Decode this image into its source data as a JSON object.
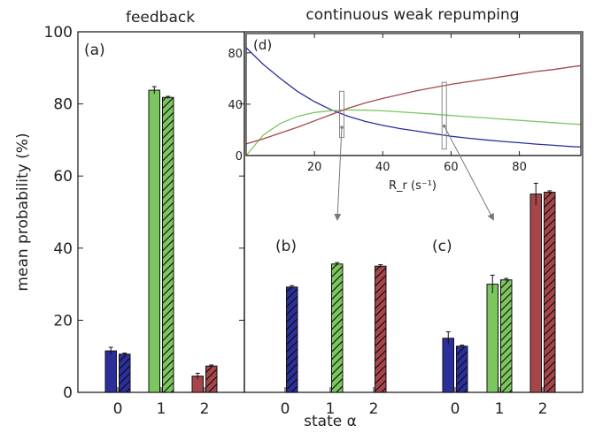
{
  "labels": {
    "feedback_title": "feedback",
    "cwr_title": "continuous weak repumping",
    "ylabel": "mean probability (%)",
    "xlabel": "state α"
  },
  "colors": {
    "blue": "#2a2f9c",
    "green": "#7cc65f",
    "red": "#a6464a",
    "axis": "#222222",
    "inset_box": "#888888"
  },
  "chart_data": [
    {
      "type": "bar",
      "panel_label": "(a)",
      "categories": [
        "0",
        "1",
        "2"
      ],
      "ylim": [
        0,
        100
      ],
      "yticks": [
        "0",
        "20",
        "40",
        "60",
        "80",
        "100"
      ],
      "series": [
        {
          "style": "solid",
          "values": [
            11.5,
            83.8,
            4.5
          ],
          "errors": [
            1.0,
            1.0,
            0.8
          ]
        },
        {
          "style": "hatched",
          "values": [
            10.6,
            81.8,
            7.3
          ],
          "errors": [
            0.3,
            0.3,
            0.3
          ]
        }
      ]
    },
    {
      "type": "bar",
      "panel_label": "(b)",
      "categories": [
        "0",
        "1",
        "2"
      ],
      "ylim": [
        0,
        100
      ],
      "series": [
        {
          "style": "hatched",
          "values": [
            29.2,
            35.6,
            35.0
          ],
          "errors": [
            0.4,
            0.4,
            0.4
          ]
        }
      ]
    },
    {
      "type": "bar",
      "panel_label": "(c)",
      "categories": [
        "0",
        "1",
        "2"
      ],
      "ylim": [
        0,
        100
      ],
      "series": [
        {
          "style": "solid",
          "values": [
            15.0,
            30.0,
            55.0
          ],
          "errors": [
            1.8,
            2.5,
            3.0
          ]
        },
        {
          "style": "hatched",
          "values": [
            12.8,
            31.2,
            55.5
          ],
          "errors": [
            0.3,
            0.4,
            0.4
          ]
        }
      ]
    },
    {
      "type": "line",
      "panel_label": "(d)",
      "xlabel": "R_r (s⁻¹)",
      "xlim": [
        0,
        98
      ],
      "ylim": [
        0,
        95
      ],
      "xticks": [
        "20",
        "40",
        "60",
        "80"
      ],
      "yticks": [
        "0",
        "40",
        "80"
      ],
      "x": [
        0,
        5,
        10,
        15,
        20,
        25,
        30,
        35,
        40,
        45,
        50,
        55,
        60,
        65,
        70,
        75,
        80,
        85,
        90,
        95,
        98
      ],
      "series": [
        {
          "color": "blue",
          "values": [
            84,
            71,
            60,
            50,
            42,
            35.5,
            30.5,
            26.5,
            23.5,
            21,
            19,
            17,
            15,
            13.5,
            12.2,
            11,
            10,
            8.9,
            8,
            7,
            6.6
          ]
        },
        {
          "color": "green",
          "values": [
            0,
            16,
            25,
            30.5,
            33.5,
            35,
            35.5,
            35.3,
            34.8,
            34,
            33.1,
            32.2,
            31.2,
            30.2,
            29.3,
            28.3,
            27.4,
            26.5,
            25.6,
            24.7,
            24.2
          ]
        },
        {
          "color": "red",
          "values": [
            9,
            13,
            17.5,
            22,
            27,
            32,
            37,
            41,
            44.5,
            47.5,
            50.5,
            53,
            55.5,
            57.5,
            59.5,
            61.5,
            63.5,
            65.5,
            67,
            69,
            70
          ]
        }
      ],
      "markers": [
        {
          "x": 28,
          "y": 22,
          "box_y": [
            14,
            50
          ],
          "target": "(b)"
        },
        {
          "x": 58,
          "y": 23,
          "box_y": [
            5,
            57
          ],
          "target": "(c)"
        }
      ]
    }
  ]
}
